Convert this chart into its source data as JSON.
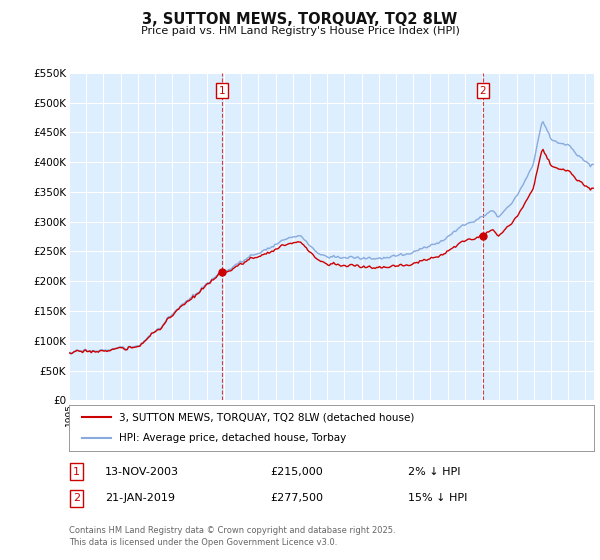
{
  "title": "3, SUTTON MEWS, TORQUAY, TQ2 8LW",
  "subtitle": "Price paid vs. HM Land Registry's House Price Index (HPI)",
  "background_color": "#ffffff",
  "plot_bg_color": "#ddeeff",
  "grid_color": "#ffffff",
  "hpi_color": "#88aadd",
  "price_color": "#cc0000",
  "vline_color": "#cc0000",
  "ylim": [
    0,
    550000
  ],
  "yticks": [
    0,
    50000,
    100000,
    150000,
    200000,
    250000,
    300000,
    350000,
    400000,
    450000,
    500000,
    550000
  ],
  "ytick_labels": [
    "£0",
    "£50K",
    "£100K",
    "£150K",
    "£200K",
    "£250K",
    "£300K",
    "£350K",
    "£400K",
    "£450K",
    "£500K",
    "£550K"
  ],
  "sale1_year": 2003.868,
  "sale1_price": 215000,
  "sale2_year": 2019.055,
  "sale2_price": 277500,
  "legend_line1": "3, SUTTON MEWS, TORQUAY, TQ2 8LW (detached house)",
  "legend_line2": "HPI: Average price, detached house, Torbay",
  "table_row1": [
    "1",
    "13-NOV-2003",
    "£215,000",
    "2% ↓ HPI"
  ],
  "table_row2": [
    "2",
    "21-JAN-2019",
    "£277,500",
    "15% ↓ HPI"
  ],
  "footnote1": "Contains HM Land Registry data © Crown copyright and database right 2025.",
  "footnote2": "This data is licensed under the Open Government Licence v3.0."
}
